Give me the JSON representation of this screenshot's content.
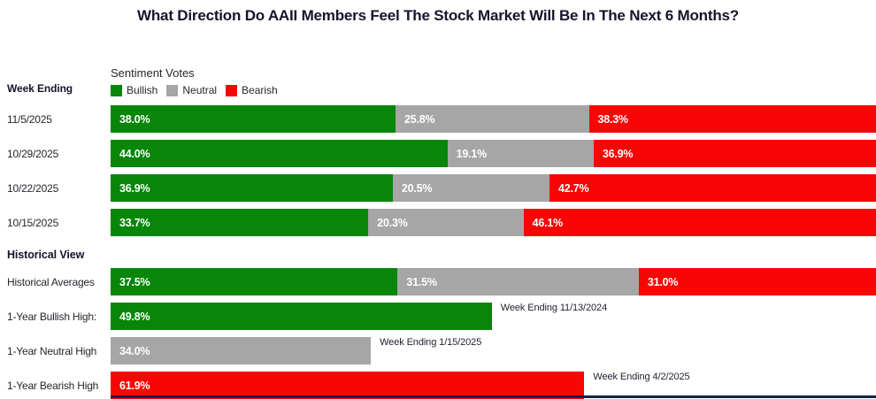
{
  "title": "What Direction Do AAII Members Feel The Stock Market Will Be In The Next 6 Months?",
  "week_ending_header": "Week Ending",
  "historical_header": "Historical View",
  "legend": {
    "title": "Sentiment Votes",
    "items": [
      {
        "label": "Bullish",
        "color": "#078609"
      },
      {
        "label": "Neutral",
        "color": "#A6A6A6"
      },
      {
        "label": "Bearish",
        "color": "#F80505"
      }
    ]
  },
  "colors": {
    "bullish": "#078609",
    "neutral": "#A6A6A6",
    "bearish": "#F80505",
    "footer_bar": "#152241"
  },
  "chart_data": {
    "type": "bar",
    "orientation": "horizontal-stacked",
    "title": "What Direction Do AAII Members Feel The Stock Market Will Be In The Next 6 Months?",
    "legend_title": "Sentiment Votes",
    "series_names": [
      "Bullish",
      "Neutral",
      "Bearish"
    ],
    "value_axis_range": [
      0,
      100
    ],
    "grid": false,
    "weekly": {
      "header": "Week Ending",
      "rows": [
        {
          "week": "11/5/2025",
          "bullish": 38.0,
          "neutral": 25.8,
          "bearish": 38.3,
          "labels": {
            "bullish": "38.0%",
            "neutral": "25.8%",
            "bearish": "38.3%"
          }
        },
        {
          "week": "10/29/2025",
          "bullish": 44.0,
          "neutral": 19.1,
          "bearish": 36.9,
          "labels": {
            "bullish": "44.0%",
            "neutral": "19.1%",
            "bearish": "36.9%"
          }
        },
        {
          "week": "10/22/2025",
          "bullish": 36.9,
          "neutral": 20.5,
          "bearish": 42.7,
          "labels": {
            "bullish": "36.9%",
            "neutral": "20.5%",
            "bearish": "42.7%"
          }
        },
        {
          "week": "10/15/2025",
          "bullish": 33.7,
          "neutral": 20.3,
          "bearish": 46.1,
          "labels": {
            "bullish": "33.7%",
            "neutral": "20.3%",
            "bearish": "46.1%"
          }
        }
      ]
    },
    "historical": {
      "header": "Historical View",
      "averages": {
        "label": "Historical Averages",
        "bullish": 37.5,
        "neutral": 31.5,
        "bearish": 31.0,
        "labels": {
          "bullish": "37.5%",
          "neutral": "31.5%",
          "bearish": "31.0%"
        }
      },
      "records": [
        {
          "label": "1-Year Bullish High:",
          "series": "bullish",
          "value": 49.8,
          "value_label": "49.8%",
          "annotation": "Week Ending 11/13/2024"
        },
        {
          "label": "1-Year Neutral High",
          "series": "neutral",
          "value": 34.0,
          "value_label": "34.0%",
          "annotation": "Week Ending 1/15/2025"
        },
        {
          "label": "1-Year Bearish High",
          "series": "bearish",
          "value": 61.9,
          "value_label": "61.9%",
          "annotation": "Week Ending 4/2/2025"
        }
      ]
    }
  }
}
